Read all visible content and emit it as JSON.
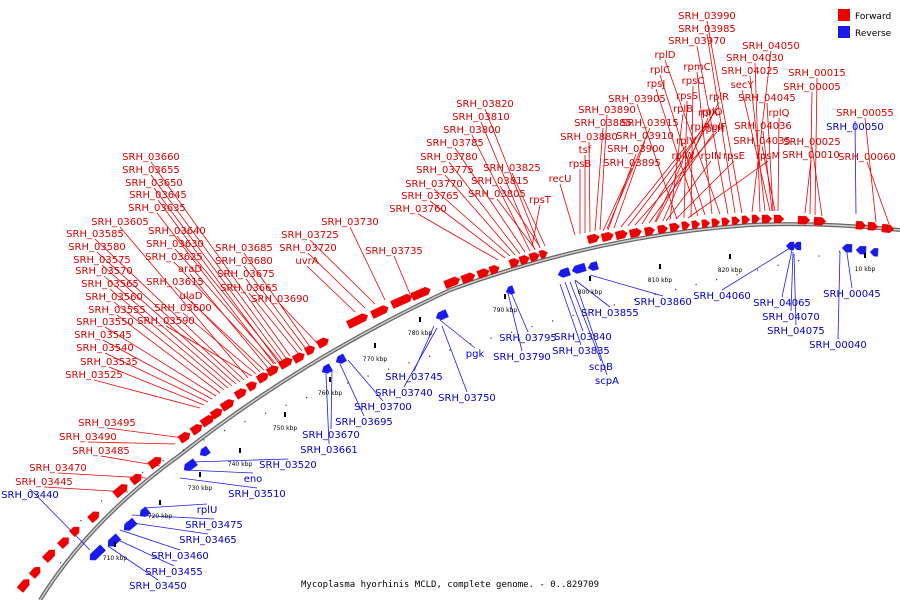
{
  "caption": "Mycoplasma hyorhinis MCLD, complete genome. - 0..829709",
  "colors": {
    "forward": "#ee0000",
    "reverse": "#1a1aee",
    "forward_label": "#d40000",
    "reverse_label": "#0000c8",
    "backbone": "#888888"
  },
  "legend": {
    "forward": "Forward",
    "reverse": "Reverse"
  },
  "ticks": [
    "710 kbp",
    "720 kbp",
    "730 kbp",
    "740 kbp",
    "750 kbp",
    "760 kbp",
    "770 kbp",
    "780 kbp",
    "790 kbp",
    "800 kbp",
    "810 kbp",
    "820 kbp",
    "10 kbp"
  ],
  "forward_labels": [
    "SRH_03990",
    "SRH_03985",
    "SRH_03970",
    "rplD",
    "rpmC",
    "rplC",
    "rpsJ",
    "rpsC",
    "rpsS",
    "SRH_03905",
    "rplB",
    "rplX",
    "rplR",
    "rpsH",
    "rplP",
    "rplF",
    "rplO",
    "rplV",
    "SRH_03910",
    "SRH_03915",
    "SRH_03890",
    "SRH_03885",
    "SRH_03880",
    "SRH_03900",
    "SRH_03895",
    "rplW",
    "rpIN",
    "rpsE",
    "rpsM",
    "tsf",
    "rpsB",
    "recU",
    "SRH_04050",
    "SRH_04030",
    "SRH_04025",
    "secY",
    "SRH_04045",
    "rplQ",
    "SRH_04036",
    "SRH_04035",
    "SRH_00015",
    "SRH_00005",
    "SRH_00025",
    "SRH_00010",
    "SRH_00055",
    "SRH_00060",
    "SRH_03820",
    "SRH_03810",
    "SRH_03800",
    "SRH_03785",
    "SRH_03780",
    "SRH_03775",
    "SRH_03770",
    "SRH_03765",
    "SRH_03760",
    "SRH_03825",
    "SRH_03815",
    "SRH_03805",
    "rpsT",
    "SRH_03730",
    "SRH_03725",
    "SRH_03720",
    "uvrA",
    "SRH_03735",
    "SRH_03660",
    "SRH_03655",
    "SRH_03650",
    "SRH_03645",
    "SRH_03635",
    "SRH_03640",
    "SRH_03630",
    "SRH_03625",
    "araD",
    "SRH_03615",
    "ulaD",
    "SRH_03600",
    "SRH_03590",
    "SRH_03605",
    "SRH_03585",
    "SRH_03580",
    "SRH_03575",
    "SRH_03570",
    "SRH_03565",
    "SRH_03560",
    "SRH_03555",
    "SRH_03550",
    "SRH_03545",
    "SRH_03540",
    "SRH_03535",
    "SRH_03525",
    "SRH_03685",
    "SRH_03680",
    "SRH_03675",
    "SRH_03665",
    "SRH_03690",
    "SRH_03495",
    "SRH_03490",
    "SRH_03485",
    "SRH_03470",
    "SRH_03445"
  ],
  "reverse_labels": [
    "SRH_00050",
    "SRH_04060",
    "SRH_04065",
    "SRH_04070",
    "SRH_04075",
    "SRH_00045",
    "SRH_00040",
    "SRH_03860",
    "SRH_03855",
    "SRH_03840",
    "SRH_03835",
    "scpB",
    "scpA",
    "SRH_03795",
    "SRH_03790",
    "pgk",
    "SRH_03745",
    "SRH_03740",
    "SRH_03750",
    "SRH_03700",
    "SRH_03695",
    "SRH_03670",
    "SRH_03661",
    "SRH_03520",
    "eno",
    "SRH_03510",
    "rplU",
    "SRH_03475",
    "SRH_03465",
    "SRH_03460",
    "SRH_03455",
    "SRH_03450",
    "SRH_03440"
  ]
}
